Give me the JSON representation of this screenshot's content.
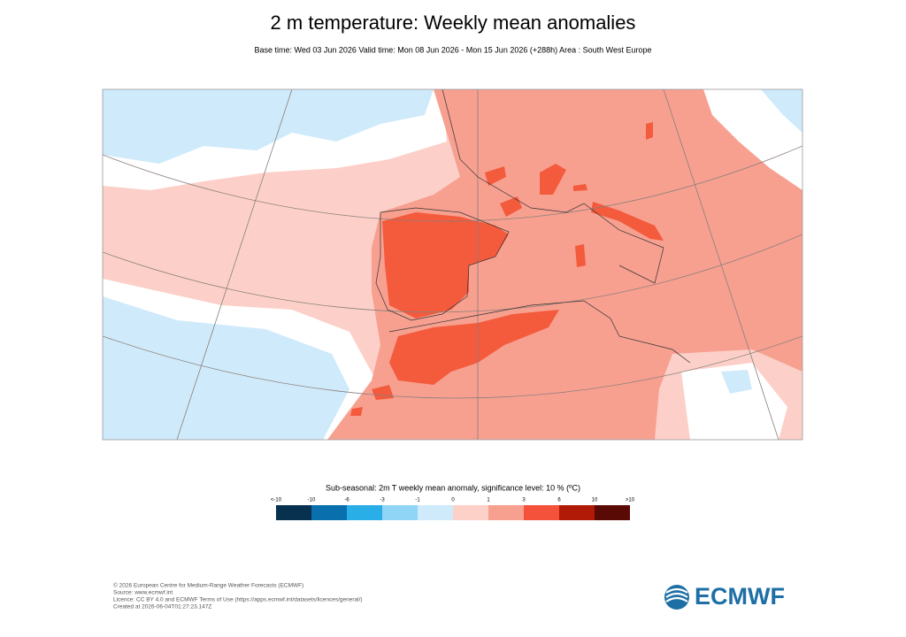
{
  "title": "2 m temperature: Weekly mean anomalies",
  "subtitle": "Base time: Wed 03 Jun 2026 Valid time: Mon 08 Jun 2026 - Mon 15 Jun 2026 (+288h) Area : South West Europe",
  "legend": {
    "title": "Sub-seasonal: 2m T weekly mean anomaly, significance level: 10 % (ºC)",
    "labels": [
      "<-10",
      "-10",
      "-6",
      "-3",
      "-1",
      "0",
      "1",
      "3",
      "6",
      "10",
      ">10"
    ],
    "colors": [
      "#08304f",
      "#0a6fad",
      "#2aaee8",
      "#90d5f5",
      "#cfeafa",
      "#fdd0c8",
      "#f7a090",
      "#f4523a",
      "#b01a06",
      "#5a0a04"
    ]
  },
  "footer": {
    "lines": [
      "© 2026 European Centre for Medium-Range Weather Forecasts (ECMWF)",
      "Source: www.ecmwf.int",
      "Licence: CC BY 4.0 and ECMWF Terms of Use (https://apps.ecmwf.int/datasets/licences/general/)",
      "Created at 2026-06-04T01:27:23.147Z"
    ]
  },
  "logo": "ECMWF"
}
